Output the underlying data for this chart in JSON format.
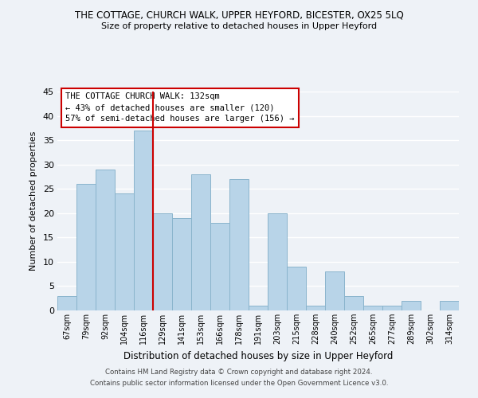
{
  "title": "THE COTTAGE, CHURCH WALK, UPPER HEYFORD, BICESTER, OX25 5LQ",
  "subtitle": "Size of property relative to detached houses in Upper Heyford",
  "xlabel": "Distribution of detached houses by size in Upper Heyford",
  "ylabel": "Number of detached properties",
  "bin_labels": [
    "67sqm",
    "79sqm",
    "92sqm",
    "104sqm",
    "116sqm",
    "129sqm",
    "141sqm",
    "153sqm",
    "166sqm",
    "178sqm",
    "191sqm",
    "203sqm",
    "215sqm",
    "228sqm",
    "240sqm",
    "252sqm",
    "265sqm",
    "277sqm",
    "289sqm",
    "302sqm",
    "314sqm"
  ],
  "bar_heights": [
    3,
    26,
    29,
    24,
    37,
    20,
    19,
    28,
    18,
    27,
    1,
    20,
    9,
    1,
    8,
    3,
    1,
    1,
    2,
    0,
    2
  ],
  "bar_color": "#b8d4e8",
  "bar_edge_color": "#8ab4cc",
  "vline_color": "#cc0000",
  "ylim": [
    0,
    45
  ],
  "yticks": [
    0,
    5,
    10,
    15,
    20,
    25,
    30,
    35,
    40,
    45
  ],
  "annotation_title": "THE COTTAGE CHURCH WALK: 132sqm",
  "annotation_line1": "← 43% of detached houses are smaller (120)",
  "annotation_line2": "57% of semi-detached houses are larger (156) →",
  "annotation_box_color": "#ffffff",
  "annotation_box_edge": "#cc0000",
  "footer1": "Contains HM Land Registry data © Crown copyright and database right 2024.",
  "footer2": "Contains public sector information licensed under the Open Government Licence v3.0.",
  "background_color": "#eef2f7",
  "grid_color": "#ffffff"
}
